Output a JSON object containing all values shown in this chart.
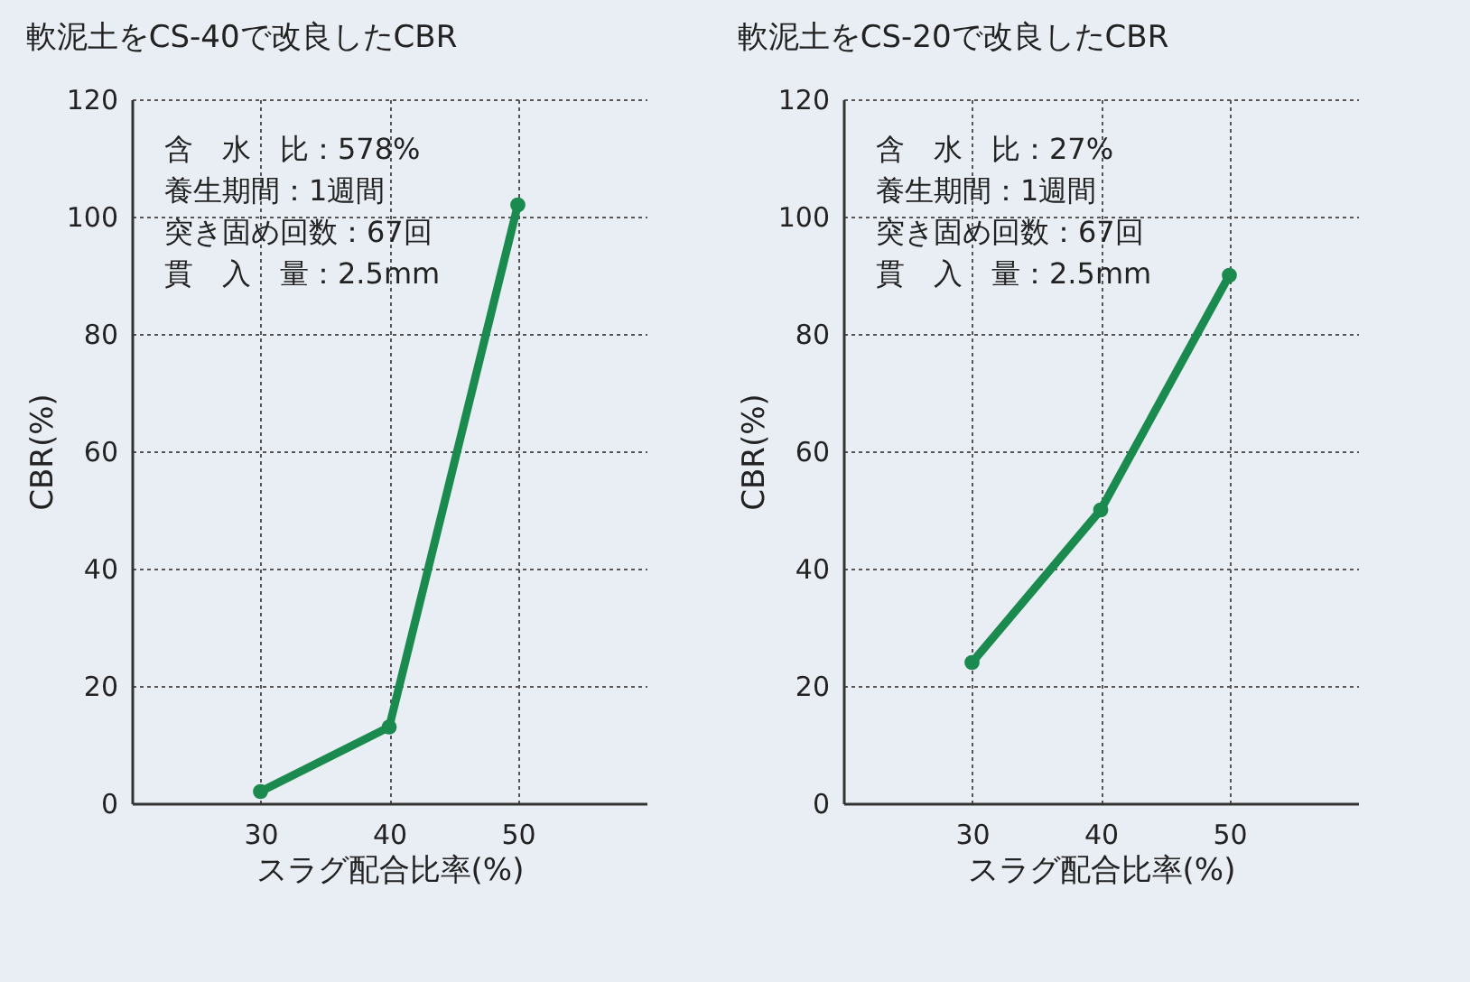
{
  "chart_data": [
    {
      "type": "line",
      "title": "軟泥土をCS-40で改良したCBR",
      "xlabel": "スラグ配合比率(%)",
      "ylabel": "CBR(%)",
      "x": [
        30,
        40,
        50
      ],
      "series": [
        {
          "color": "#1a8a4e",
          "values": [
            2,
            13,
            102
          ]
        }
      ],
      "xlim": [
        20,
        60
      ],
      "xticks": [
        30,
        40,
        50
      ],
      "ylim": [
        0,
        120
      ],
      "yticks": [
        0,
        20,
        40,
        60,
        80,
        100,
        120
      ],
      "grid": true,
      "marker": "circle",
      "line_style": "solid",
      "annotations": [
        "含　水　比：578%",
        "養生期間：1週間",
        "突き固め回数：67回",
        "貫　入　量：2.5mm"
      ]
    },
    {
      "type": "line",
      "title": "軟泥土をCS-20で改良したCBR",
      "xlabel": "スラグ配合比率(%)",
      "ylabel": "CBR(%)",
      "x": [
        30,
        40,
        50
      ],
      "series": [
        {
          "color": "#1a8a4e",
          "values": [
            24,
            50,
            90
          ]
        }
      ],
      "xlim": [
        20,
        60
      ],
      "xticks": [
        30,
        40,
        50
      ],
      "ylim": [
        0,
        120
      ],
      "yticks": [
        0,
        20,
        40,
        60,
        80,
        100,
        120
      ],
      "grid": true,
      "marker": "circle",
      "line_style": "solid",
      "annotations": [
        "含　水　比：27%",
        "養生期間：1週間",
        "突き固め回数：67回",
        "貫　入　量：2.5mm"
      ]
    }
  ]
}
